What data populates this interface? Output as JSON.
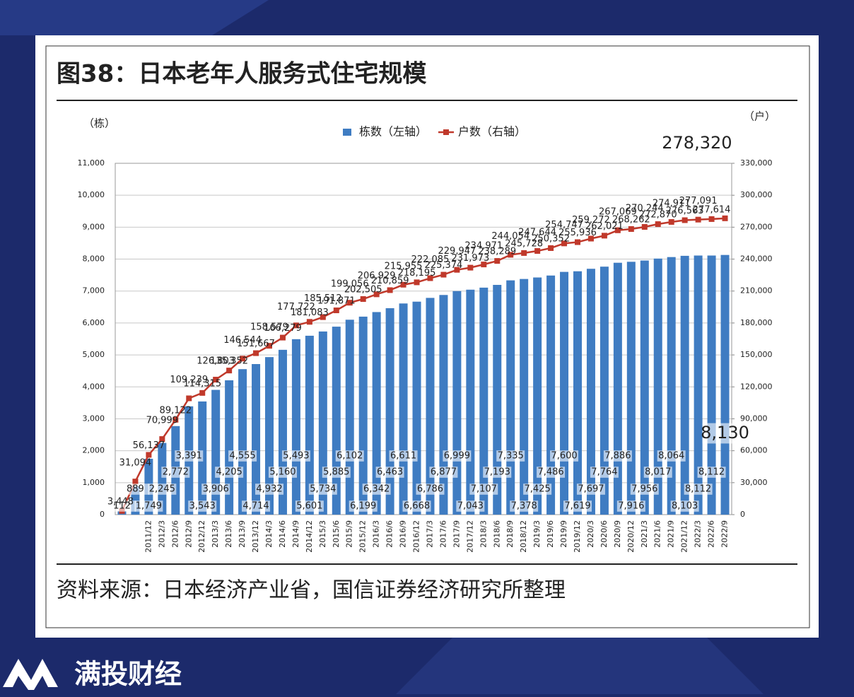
{
  "chart_data": {
    "type": "bar",
    "title": "图38：日本老年人服务式住宅规模",
    "source": "资料来源：日本经济产业省，国信证券经济研究所整理",
    "y_label": "（栋）",
    "y2_label": "（户）",
    "categories": [
      null,
      null,
      "2011/12",
      "2012/3",
      "2012/6",
      "2012/9",
      "2012/12",
      "2013/3",
      "2013/6",
      "2013/9",
      "2013/12",
      "2014/3",
      "2014/6",
      "2014/9",
      "2014/12",
      "2015/3",
      "2015/6",
      "2015/9",
      "2015/12",
      "2016/3",
      "2016/6",
      "2016/9",
      "2016/12",
      "2017/3",
      "2017/6",
      "2017/9",
      "2017/12",
      "2018/3",
      "2018/6",
      "2018/9",
      "2018/12",
      "2019/3",
      "2019/6",
      "2019/9",
      "2019/12",
      "2020/3",
      "2020/6",
      "2020/9",
      "2020/12",
      "2021/3",
      "2021/6",
      "2021/9",
      "2021/12",
      "2022/3",
      "2022/6",
      "2022/9"
    ],
    "series": [
      {
        "name": "栋数（左轴）",
        "type": "bar",
        "color": "#3f7cc2",
        "values": [
          112,
          889,
          1749,
          2245,
          2772,
          3391,
          3543,
          3906,
          4205,
          4555,
          4714,
          4932,
          5160,
          5493,
          5601,
          5734,
          5885,
          6102,
          6199,
          6342,
          6463,
          6611,
          6668,
          6786,
          6877,
          6999,
          7043,
          7107,
          7193,
          7335,
          7378,
          7425,
          7486,
          7600,
          7619,
          7697,
          7764,
          7886,
          7916,
          7956,
          8017,
          8064,
          8103,
          8112,
          8112,
          8130
        ],
        "value_labels": [
          "112",
          "889",
          "1,749",
          "2,245",
          "2,772",
          "3,391",
          "3,543",
          "3,906",
          "4,205",
          "4,555",
          "4,714",
          "4,932",
          "5,160",
          "5,493",
          "5,601",
          "5,734",
          "5,885",
          "6,102",
          "6,199",
          "6,342",
          "6,463",
          "6,611",
          "6,668",
          "6,786",
          "6,877",
          "6,999",
          "7,043",
          "7,107",
          "7,193",
          "7,335",
          "7,378",
          "7,425",
          "7,486",
          "7,600",
          "7,619",
          "7,697",
          "7,764",
          "7,886",
          "7,916",
          "7,956",
          "8,017",
          "8,064",
          "8,103",
          "8,112",
          "8,112",
          "8,130"
        ]
      },
      {
        "name": "户数（右轴）",
        "type": "line",
        "axis": "y2",
        "color": "#c0392b",
        "values": [
          3448,
          31094,
          56137,
          70999,
          89122,
          109239,
          114315,
          126803,
          135352,
          146544,
          151667,
          158579,
          166279,
          177722,
          181083,
          185512,
          191871,
          199056,
          202505,
          206929,
          210859,
          215955,
          218195,
          222085,
          225374,
          229947,
          231973,
          234971,
          238289,
          244054,
          245728,
          247644,
          250352,
          254747,
          255936,
          259272,
          262021,
          267069,
          268262,
          270244,
          272870,
          274911,
          276563,
          277091,
          277614,
          278320
        ],
        "value_labels": [
          "3,448",
          "31,094",
          "56,137",
          "70,999",
          "89,122",
          "109,239",
          "114,315",
          "126,803",
          "135,352",
          "146,544",
          "151,667",
          "158,579",
          "166,279",
          "177,722",
          "181,083",
          "185,512",
          "191,871",
          "199,056",
          "202,505",
          "206,929",
          "210,859",
          "215,955",
          "218,195",
          "222,085",
          "225,374",
          "229,947",
          "231,973",
          "234,971",
          "238,289",
          "244,054",
          "245,728",
          "247,644",
          "250,352",
          "254,747",
          "255,936",
          "259,272",
          "262,021",
          "267,069",
          "268,262",
          "270,244",
          "272,870",
          "274,911",
          "276,563",
          "277,091",
          "277,614",
          "278,320"
        ]
      }
    ],
    "ylim": [
      0,
      11000
    ],
    "yticks": [
      0,
      {
        "value": 1000,
        "label": "1,000"
      },
      {
        "value": 2000,
        "label": "2,000"
      },
      {
        "value": 3000,
        "label": "3,000"
      },
      {
        "value": 4000,
        "label": "4,000"
      },
      {
        "value": 5000,
        "label": "5,000"
      },
      {
        "value": 6000,
        "label": "6,000"
      },
      {
        "value": 7000,
        "label": "7,000"
      },
      {
        "value": 8000,
        "label": "8,000"
      },
      {
        "value": 9000,
        "label": "9,000"
      },
      {
        "value": 10000,
        "label": "10,000"
      },
      {
        "value": 11000,
        "label": "11,000"
      }
    ],
    "y2lim": [
      0,
      330000
    ],
    "y2ticks": [
      0,
      {
        "value": 30000,
        "label": "30,000"
      },
      {
        "value": 60000,
        "label": "60,000"
      },
      {
        "value": 90000,
        "label": "90,000"
      },
      {
        "value": 120000,
        "label": "120,000"
      },
      {
        "value": 150000,
        "label": "150,000"
      },
      {
        "value": 180000,
        "label": "180,000"
      },
      {
        "value": 210000,
        "label": "210,000"
      },
      {
        "value": 240000,
        "label": "240,000"
      },
      {
        "value": 270000,
        "label": "270,000"
      },
      {
        "value": 300000,
        "label": "300,000"
      },
      {
        "value": 330000,
        "label": "330,000"
      }
    ],
    "grid": true,
    "legend": "top"
  },
  "brand": "满投财经"
}
